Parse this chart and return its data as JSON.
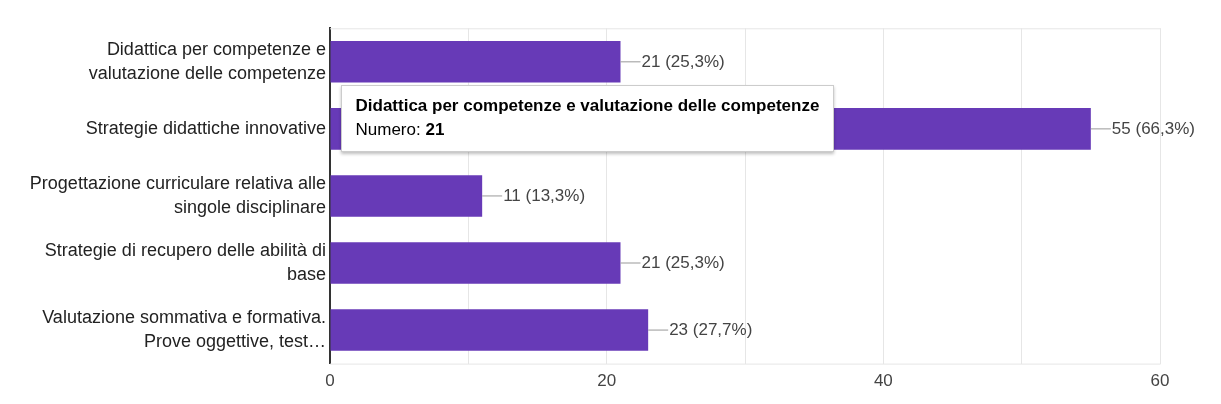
{
  "chart_data": {
    "type": "bar",
    "orientation": "horizontal",
    "categories": [
      "Didattica per competenze e valutazione delle competenze",
      "Strategie didattiche innovative",
      "Progettazione curriculare relativa alle singole disciplinare",
      "Strategie di recupero delle abilità di base",
      "Valutazione sommativa e formativa. Prove oggettive, test…"
    ],
    "values": [
      21,
      55,
      11,
      21,
      23
    ],
    "value_labels": [
      "21 (25,3%)",
      "55 (66,3%)",
      "11 (13,3%)",
      "21 (25,3%)",
      "23 (27,7%)"
    ],
    "color": "#673ab7",
    "xlim": [
      0,
      60
    ],
    "xticks": [
      0,
      {
        "value": 10,
        "label": null
      },
      20,
      {
        "value": 30,
        "label": null
      },
      40,
      {
        "value": 50,
        "label": null
      },
      60
    ],
    "grid": "x",
    "annotations": [
      "Didattica per competenze e valutazione delle competenze\nNumero: 21"
    ]
  }
}
